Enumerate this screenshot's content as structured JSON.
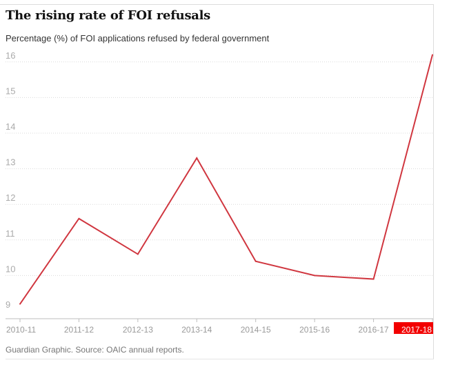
{
  "title": "The rising rate of FOI refusals",
  "subtitle": "Percentage (%) of FOI applications refused by federal government",
  "source": "Guardian Graphic. Source: OAIC annual reports.",
  "colors": {
    "line": "#d0363f",
    "highlight": "#f20000",
    "grid": "#d9d9d9"
  },
  "chart_data": {
    "type": "line",
    "title": "The rising rate of FOI refusals",
    "ylabel": "Percentage (%) of FOI applications refused by federal government",
    "categories": [
      "2010-11",
      "2011-12",
      "2012-13",
      "2013-14",
      "2014-15",
      "2015-16",
      "2016-17",
      "2017-18"
    ],
    "series": [
      {
        "values": [
          9.2,
          11.6,
          10.6,
          13.3,
          10.4,
          10.0,
          9.9,
          16.2
        ]
      }
    ],
    "yticks": [
      9,
      10,
      11,
      12,
      13,
      14,
      15,
      16
    ],
    "ylim": [
      9,
      16.6
    ],
    "grid": true,
    "highlight_category": "2017-18"
  }
}
